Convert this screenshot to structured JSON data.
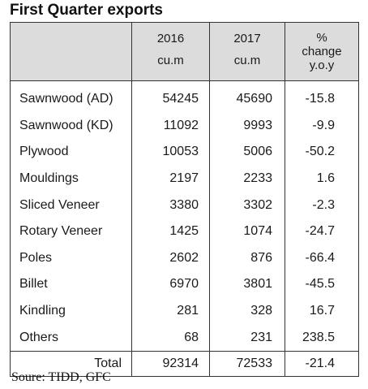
{
  "title": "First Quarter exports",
  "headers": {
    "col2016": {
      "line1": "2016",
      "line2": "cu.m"
    },
    "col2017": {
      "line1": "2017",
      "line2": "cu.m"
    },
    "pct": {
      "line1": "%",
      "line2": "change",
      "line3": "y.o.y"
    }
  },
  "rows": [
    {
      "product": "Sawnwood (AD)",
      "y2016": "54245",
      "y2017": "45690",
      "change": "-15.8"
    },
    {
      "product": "Sawnwood (KD)",
      "y2016": "11092",
      "y2017": "9993",
      "change": "-9.9"
    },
    {
      "product": "Plywood",
      "y2016": "10053",
      "y2017": "5006",
      "change": "-50.2"
    },
    {
      "product": "Mouldings",
      "y2016": "2197",
      "y2017": "2233",
      "change": "1.6"
    },
    {
      "product": "Sliced Veneer",
      "y2016": "3380",
      "y2017": "3302",
      "change": "-2.3"
    },
    {
      "product": "Rotary Veneer",
      "y2016": "1425",
      "y2017": "1074",
      "change": "-24.7"
    },
    {
      "product": "Poles",
      "y2016": "2602",
      "y2017": "876",
      "change": "-66.4"
    },
    {
      "product": "Billet",
      "y2016": "6970",
      "y2017": "3801",
      "change": "-45.5"
    },
    {
      "product": "Kindling",
      "y2016": "281",
      "y2017": "328",
      "change": "16.7"
    },
    {
      "product": "Others",
      "y2016": "68",
      "y2017": "231",
      "change": "238.5"
    }
  ],
  "total": {
    "label": "Total",
    "y2016": "92314",
    "y2017": "72533",
    "change": "-21.4"
  },
  "source": "Soure: TIDD, GFC",
  "colors": {
    "header_bg": "#dcdcdc",
    "border": "#333333",
    "text": "#1a1a1a"
  }
}
